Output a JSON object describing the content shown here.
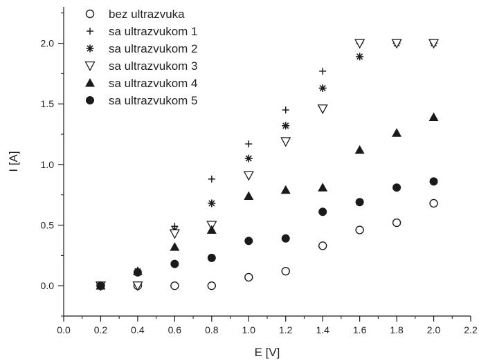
{
  "chart_data": {
    "type": "scatter",
    "title": "",
    "xlabel": "E [V]",
    "ylabel": "I [A]",
    "xlim": [
      0.0,
      2.2
    ],
    "ylim": [
      -0.25,
      2.3
    ],
    "xticks": [
      "0.0",
      "0.2",
      "0.4",
      "0.6",
      "0.8",
      "1.0",
      "1.2",
      "1.4",
      "1.6",
      "1.8",
      "2.0",
      "2.2"
    ],
    "yticks": [
      "0.0",
      "0.5",
      "1.0",
      "1.5",
      "2.0"
    ],
    "grid": false,
    "legend_position": "top-left",
    "series": [
      {
        "name": "bez ultrazvuka",
        "marker": "circle-open",
        "x": [
          0.2,
          0.4,
          0.6,
          0.8,
          1.0,
          1.2,
          1.4,
          1.6,
          1.8,
          2.0
        ],
        "y": [
          0.0,
          0.0,
          0.0,
          0.0,
          0.07,
          0.12,
          0.33,
          0.46,
          0.52,
          0.68
        ]
      },
      {
        "name": "sa ultrazvukom 1",
        "marker": "plus",
        "x": [
          0.2,
          0.4,
          0.6,
          0.8,
          1.0,
          1.2,
          1.4,
          1.6,
          1.8,
          2.0
        ],
        "y": [
          0.0,
          0.12,
          0.49,
          0.88,
          1.17,
          1.45,
          1.77,
          2.0,
          2.0,
          2.0
        ]
      },
      {
        "name": "sa ultrazvukom 2",
        "marker": "asterisk",
        "x": [
          0.2,
          0.4,
          0.6,
          0.8,
          1.0,
          1.2,
          1.4,
          1.6,
          1.8,
          2.0
        ],
        "y": [
          0.0,
          0.12,
          0.46,
          0.68,
          1.05,
          1.32,
          1.63,
          1.89,
          2.0,
          2.0
        ]
      },
      {
        "name": "sa ultrazvukom 3",
        "marker": "triangle-down-open",
        "x": [
          0.2,
          0.4,
          0.6,
          0.8,
          1.0,
          1.2,
          1.4,
          1.6,
          1.8,
          2.0
        ],
        "y": [
          0.0,
          0.0,
          0.43,
          0.5,
          0.91,
          1.19,
          1.46,
          2.0,
          2.0,
          2.0
        ]
      },
      {
        "name": "sa ultrazvukom 4",
        "marker": "triangle-up-filled",
        "x": [
          0.2,
          0.4,
          0.6,
          0.8,
          1.0,
          1.2,
          1.4,
          1.6,
          1.8,
          2.0
        ],
        "y": [
          0.0,
          0.12,
          0.32,
          0.46,
          0.74,
          0.79,
          0.81,
          1.12,
          1.26,
          1.39
        ]
      },
      {
        "name": "sa ultrazvukom 5",
        "marker": "circle-filled",
        "x": [
          0.2,
          0.4,
          0.6,
          0.8,
          1.0,
          1.2,
          1.4,
          1.6,
          1.8,
          2.0
        ],
        "y": [
          0.0,
          0.11,
          0.18,
          0.23,
          0.37,
          0.39,
          0.61,
          0.69,
          0.81,
          0.86
        ]
      }
    ]
  }
}
